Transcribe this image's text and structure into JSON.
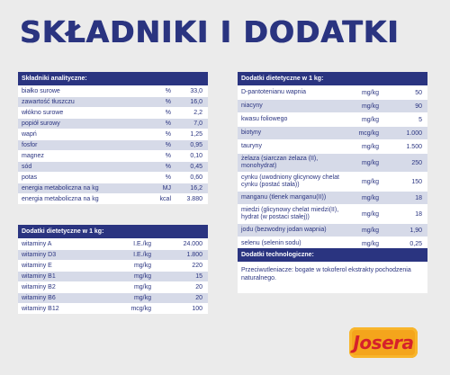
{
  "title": "SKŁADNIKI I DODATKI",
  "analytical": {
    "header": "Składniki analityczne:",
    "rows": [
      {
        "name": "białko surowe",
        "unit": "%",
        "value": "33,0"
      },
      {
        "name": "zawartość tłuszczu",
        "unit": "%",
        "value": "16,0"
      },
      {
        "name": "włókno surowe",
        "unit": "%",
        "value": "2,2"
      },
      {
        "name": "popiół surowy",
        "unit": "%",
        "value": "7,0"
      },
      {
        "name": "wapń",
        "unit": "%",
        "value": "1,25"
      },
      {
        "name": "fosfor",
        "unit": "%",
        "value": "0,95"
      },
      {
        "name": "magnez",
        "unit": "%",
        "value": "0,10"
      },
      {
        "name": "sód",
        "unit": "%",
        "value": "0,45"
      },
      {
        "name": "potas",
        "unit": "%",
        "value": "0,60"
      },
      {
        "name": "energia metaboliczna na kg",
        "unit": "MJ",
        "value": "16,2"
      },
      {
        "name": "energia metaboliczna na kg",
        "unit": "kcal",
        "value": "3.880"
      }
    ]
  },
  "vitamins": {
    "header": "Dodatki dietetyczne w 1 kg:",
    "rows": [
      {
        "name": "witaminy A",
        "unit": "I.E./kg",
        "value": "24.000"
      },
      {
        "name": "witaminy D3",
        "unit": "I.E./kg",
        "value": "1.800"
      },
      {
        "name": "witaminy E",
        "unit": "mg/kg",
        "value": "220"
      },
      {
        "name": "witaminy B1",
        "unit": "mg/kg",
        "value": "15"
      },
      {
        "name": "witaminy B2",
        "unit": "mg/kg",
        "value": "20"
      },
      {
        "name": "witaminy B6",
        "unit": "mg/kg",
        "value": "20"
      },
      {
        "name": "witaminy B12",
        "unit": "mcg/kg",
        "value": "100"
      }
    ]
  },
  "dietetic": {
    "header": "Dodatki dietetyczne w 1 kg:",
    "rows": [
      {
        "name": "D-pantotenianu wapnia",
        "unit": "mg/kg",
        "value": "50"
      },
      {
        "name": "niacyny",
        "unit": "mg/kg",
        "value": "90"
      },
      {
        "name": "kwasu foliowego",
        "unit": "mg/kg",
        "value": "5"
      },
      {
        "name": "biotyny",
        "unit": "mcg/kg",
        "value": "1.000"
      },
      {
        "name": "tauryny",
        "unit": "mg/kg",
        "value": "1.500"
      },
      {
        "name": "żelaza (siarczan żelaza (II), monohydrat)",
        "unit": "mg/kg",
        "value": "250"
      },
      {
        "name": "cynku (uwodniony glicynowy chelat cynku (postać stała))",
        "unit": "mg/kg",
        "value": "150"
      },
      {
        "name": "manganu (tlenek manganu(II))",
        "unit": "mg/kg",
        "value": "18"
      },
      {
        "name": "miedzi (glicynowy chelat miedzi(II), hydrat (w postaci stałej))",
        "unit": "mg/kg",
        "value": "18"
      },
      {
        "name": "jodu (bezwodny jodan wapnia)",
        "unit": "mg/kg",
        "value": "1,90"
      },
      {
        "name": "selenu (selenin sodu)",
        "unit": "mg/kg",
        "value": "0,25"
      }
    ]
  },
  "technological": {
    "header": "Dodatki technologiczne:",
    "text": "Przeciwutleniacze: bogate w tokoferol ekstrakty pochodzenia naturalnego."
  },
  "logo": {
    "text": "Josera"
  },
  "colors": {
    "navy": "#2a3480",
    "stripe": "#d6dae8",
    "logo_bg": "#f4a51c",
    "logo_text": "#d6212b"
  }
}
